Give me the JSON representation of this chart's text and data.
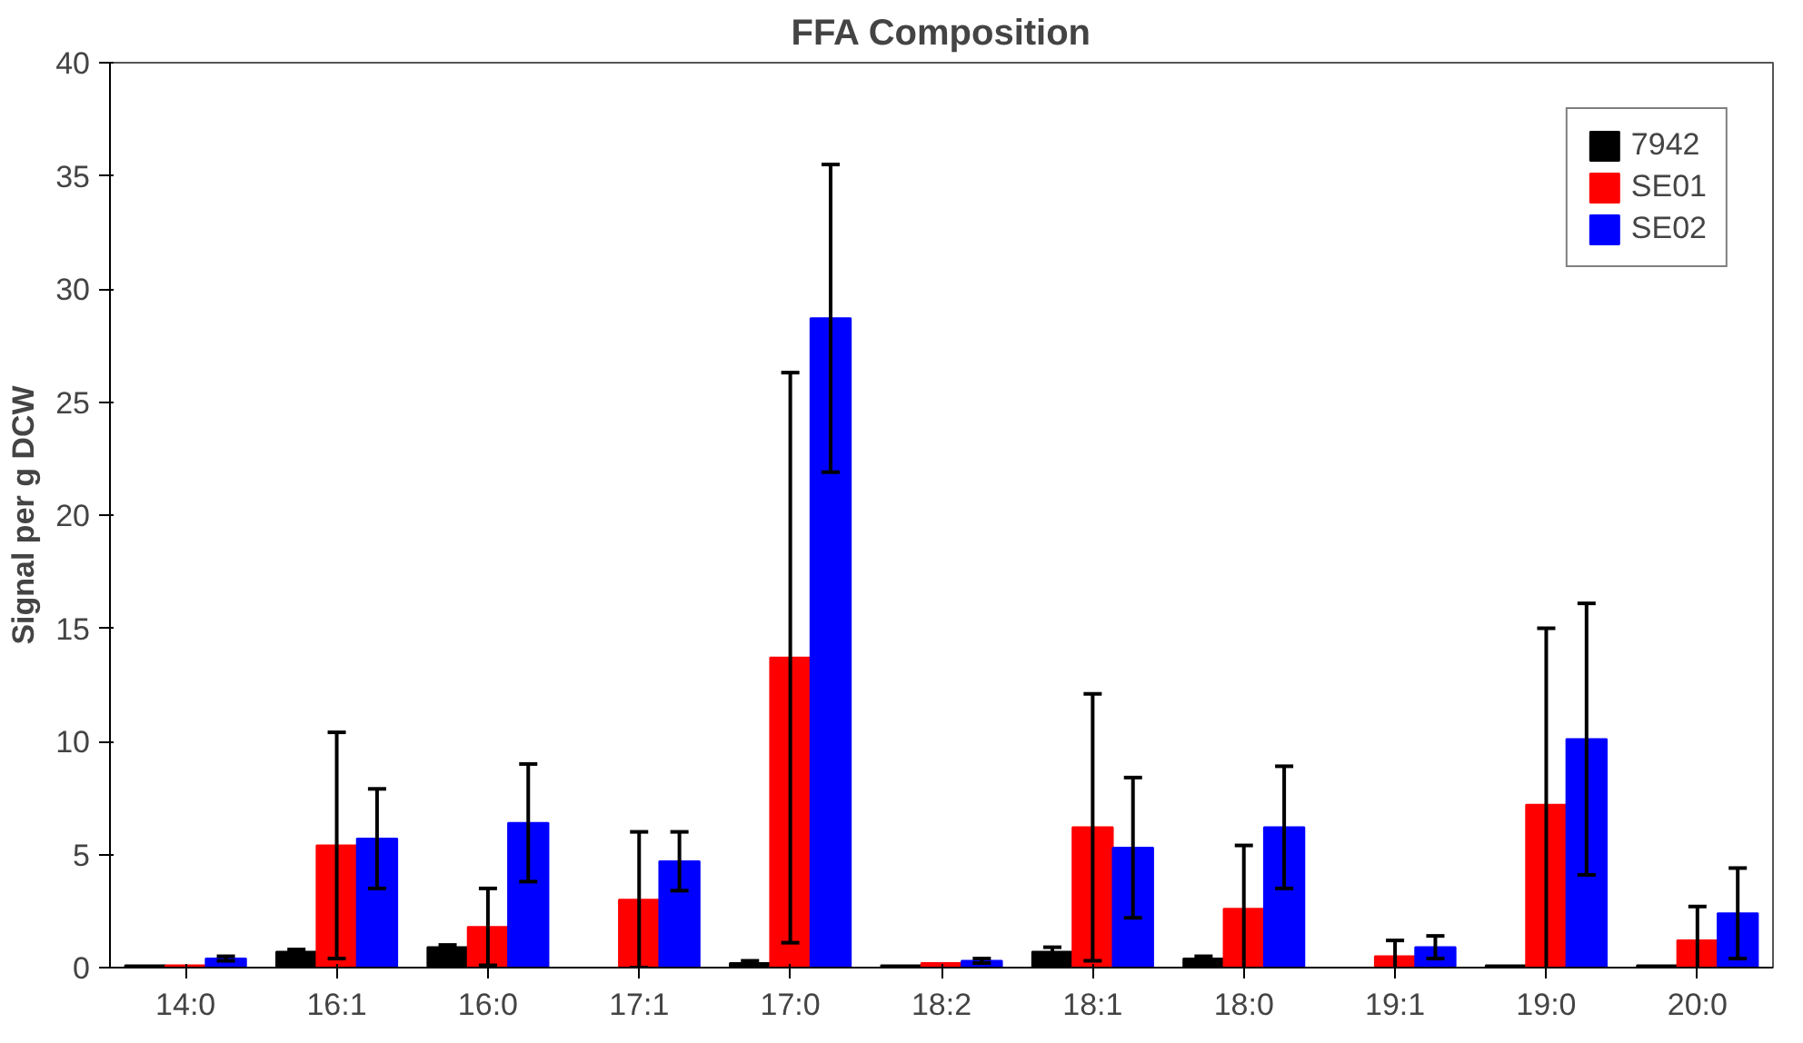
{
  "chart_data": {
    "type": "bar",
    "title": "FFA Composition",
    "ylabel": "Signal per g DCW",
    "categories": [
      "14:0",
      "16:1",
      "16:0",
      "17:1",
      "17:0",
      "18:2",
      "18:1",
      "18:0",
      "19:1",
      "19:0",
      "20:0"
    ],
    "series": [
      {
        "name": "7942",
        "color": "#000000",
        "values": [
          0.1,
          0.7,
          0.9,
          0,
          0.2,
          0.1,
          0.7,
          0.4,
          0,
          0.1,
          0.1
        ],
        "errors": [
          null,
          0.1,
          0.1,
          null,
          0.1,
          null,
          0.2,
          0.1,
          null,
          null,
          null
        ]
      },
      {
        "name": "SE01",
        "color": "#ff0000",
        "values": [
          0.1,
          5.4,
          1.8,
          3.0,
          13.7,
          0.2,
          6.2,
          2.6,
          0.5,
          7.2,
          1.2
        ],
        "errors": [
          null,
          5.0,
          1.7,
          3.0,
          12.6,
          null,
          5.9,
          2.8,
          0.7,
          7.8,
          1.5
        ]
      },
      {
        "name": "SE02",
        "color": "#0000ff",
        "values": [
          0.4,
          5.7,
          6.4,
          4.7,
          28.7,
          0.3,
          5.3,
          6.2,
          0.9,
          10.1,
          2.4
        ],
        "errors": [
          0.1,
          2.2,
          2.6,
          1.3,
          6.8,
          0.1,
          3.1,
          2.7,
          0.5,
          6.0,
          2.0
        ]
      }
    ],
    "ylim": [
      0,
      40
    ],
    "yticks": [
      0,
      5,
      10,
      15,
      20,
      25,
      30,
      35,
      40
    ],
    "grid": false,
    "legend": "top right"
  }
}
